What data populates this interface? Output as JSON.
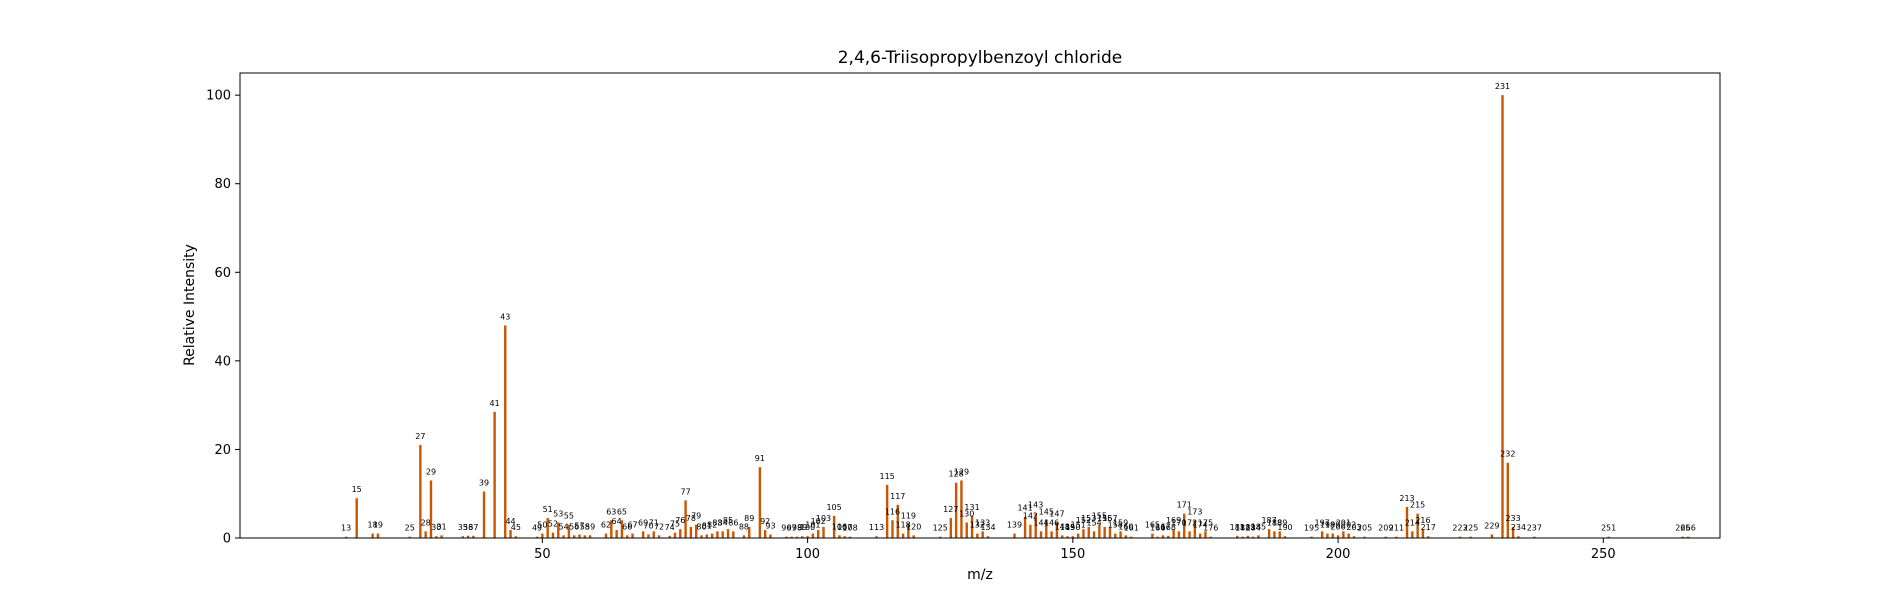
{
  "chart_data": {
    "type": "bar",
    "title": "2,4,6-Triisopropylbenzoyl chloride",
    "xlabel": "m/z",
    "ylabel": "Relative Intensity",
    "xlim": [
      -7,
      272
    ],
    "ylim": [
      0,
      105
    ],
    "x_ticks": [
      50,
      100,
      150,
      200,
      250
    ],
    "y_ticks": [
      0,
      20,
      40,
      60,
      80,
      100
    ],
    "grid": false,
    "bar_color": "#cc5500",
    "peaks": [
      {
        "mz": 13,
        "intensity": 0.3,
        "label": "13"
      },
      {
        "mz": 15,
        "intensity": 9.0,
        "label": "15"
      },
      {
        "mz": 18,
        "intensity": 1.0,
        "label": "18"
      },
      {
        "mz": 19,
        "intensity": 1.0,
        "label": "19"
      },
      {
        "mz": 25,
        "intensity": 0.3,
        "label": "25"
      },
      {
        "mz": 27,
        "intensity": 21.0,
        "label": "27"
      },
      {
        "mz": 28,
        "intensity": 1.5,
        "label": "28"
      },
      {
        "mz": 29,
        "intensity": 13.0,
        "label": "29"
      },
      {
        "mz": 30,
        "intensity": 0.4,
        "label": "30"
      },
      {
        "mz": 31,
        "intensity": 0.6,
        "label": "31"
      },
      {
        "mz": 35,
        "intensity": 0.4,
        "label": "35"
      },
      {
        "mz": 36,
        "intensity": 0.5,
        "label": "36"
      },
      {
        "mz": 37,
        "intensity": 0.5,
        "label": "37"
      },
      {
        "mz": 39,
        "intensity": 10.5,
        "label": "39"
      },
      {
        "mz": 41,
        "intensity": 28.5,
        "label": "41"
      },
      {
        "mz": 43,
        "intensity": 48.0,
        "label": "43"
      },
      {
        "mz": 44,
        "intensity": 1.8,
        "label": "44"
      },
      {
        "mz": 45,
        "intensity": 0.4,
        "label": "45"
      },
      {
        "mz": 49,
        "intensity": 0.3,
        "label": "49"
      },
      {
        "mz": 50,
        "intensity": 1.0,
        "label": "50"
      },
      {
        "mz": 51,
        "intensity": 4.5,
        "label": "51"
      },
      {
        "mz": 52,
        "intensity": 1.2,
        "label": "52"
      },
      {
        "mz": 53,
        "intensity": 3.5,
        "label": "53"
      },
      {
        "mz": 54,
        "intensity": 0.6,
        "label": "54"
      },
      {
        "mz": 55,
        "intensity": 3.0,
        "label": "55"
      },
      {
        "mz": 56,
        "intensity": 0.6,
        "label": "56"
      },
      {
        "mz": 57,
        "intensity": 0.8,
        "label": "57"
      },
      {
        "mz": 58,
        "intensity": 0.6,
        "label": "58"
      },
      {
        "mz": 59,
        "intensity": 0.6,
        "label": "59"
      },
      {
        "mz": 62,
        "intensity": 1.0,
        "label": "62"
      },
      {
        "mz": 63,
        "intensity": 4.0,
        "label": "63"
      },
      {
        "mz": 64,
        "intensity": 1.8,
        "label": "64"
      },
      {
        "mz": 65,
        "intensity": 4.0,
        "label": "65"
      },
      {
        "mz": 66,
        "intensity": 0.6,
        "label": "66"
      },
      {
        "mz": 67,
        "intensity": 1.0,
        "label": "67"
      },
      {
        "mz": 69,
        "intensity": 1.5,
        "label": "69"
      },
      {
        "mz": 70,
        "intensity": 0.8,
        "label": "70"
      },
      {
        "mz": 71,
        "intensity": 1.5,
        "label": "71"
      },
      {
        "mz": 72,
        "intensity": 0.6,
        "label": "72"
      },
      {
        "mz": 74,
        "intensity": 0.5,
        "label": "74"
      },
      {
        "mz": 75,
        "intensity": 1.2,
        "label": "75"
      },
      {
        "mz": 76,
        "intensity": 2.0,
        "label": "76"
      },
      {
        "mz": 77,
        "intensity": 8.5,
        "label": "77"
      },
      {
        "mz": 78,
        "intensity": 2.5,
        "label": "78"
      },
      {
        "mz": 79,
        "intensity": 3.0,
        "label": "79"
      },
      {
        "mz": 80,
        "intensity": 0.6,
        "label": "80"
      },
      {
        "mz": 81,
        "intensity": 0.8,
        "label": "81"
      },
      {
        "mz": 82,
        "intensity": 1.0,
        "label": "82"
      },
      {
        "mz": 83,
        "intensity": 1.5,
        "label": "83"
      },
      {
        "mz": 84,
        "intensity": 1.5,
        "label": "84"
      },
      {
        "mz": 85,
        "intensity": 2.0,
        "label": "85"
      },
      {
        "mz": 86,
        "intensity": 1.5,
        "label": "86"
      },
      {
        "mz": 88,
        "intensity": 0.6,
        "label": "88"
      },
      {
        "mz": 89,
        "intensity": 2.5,
        "label": "89"
      },
      {
        "mz": 91,
        "intensity": 16.0,
        "label": "91"
      },
      {
        "mz": 92,
        "intensity": 1.8,
        "label": "92"
      },
      {
        "mz": 93,
        "intensity": 0.8,
        "label": "93"
      },
      {
        "mz": 96,
        "intensity": 0.3,
        "label": "96"
      },
      {
        "mz": 97,
        "intensity": 0.3,
        "label": "97"
      },
      {
        "mz": 98,
        "intensity": 0.3,
        "label": "98"
      },
      {
        "mz": 99,
        "intensity": 0.4,
        "label": "99"
      },
      {
        "mz": 100,
        "intensity": 0.4,
        "label": "100"
      },
      {
        "mz": 101,
        "intensity": 1.0,
        "label": "101"
      },
      {
        "mz": 102,
        "intensity": 1.8,
        "label": "102"
      },
      {
        "mz": 103,
        "intensity": 2.5,
        "label": "103"
      },
      {
        "mz": 105,
        "intensity": 5.0,
        "label": "105"
      },
      {
        "mz": 106,
        "intensity": 0.6,
        "label": "106"
      },
      {
        "mz": 107,
        "intensity": 0.4,
        "label": "107"
      },
      {
        "mz": 108,
        "intensity": 0.3,
        "label": "108"
      },
      {
        "mz": 113,
        "intensity": 0.4,
        "label": "113"
      },
      {
        "mz": 115,
        "intensity": 12.0,
        "label": "115"
      },
      {
        "mz": 116,
        "intensity": 4.0,
        "label": "116"
      },
      {
        "mz": 117,
        "intensity": 7.5,
        "label": "117"
      },
      {
        "mz": 118,
        "intensity": 1.0,
        "label": "118"
      },
      {
        "mz": 119,
        "intensity": 3.0,
        "label": "119"
      },
      {
        "mz": 120,
        "intensity": 0.6,
        "label": "120"
      },
      {
        "mz": 125,
        "intensity": 0.3,
        "label": "125"
      },
      {
        "mz": 127,
        "intensity": 4.5,
        "label": "127"
      },
      {
        "mz": 128,
        "intensity": 12.5,
        "label": "128"
      },
      {
        "mz": 129,
        "intensity": 13.0,
        "label": "129"
      },
      {
        "mz": 130,
        "intensity": 3.5,
        "label": "130"
      },
      {
        "mz": 131,
        "intensity": 5.0,
        "label": "131"
      },
      {
        "mz": 132,
        "intensity": 1.0,
        "label": "132"
      },
      {
        "mz": 133,
        "intensity": 1.5,
        "label": "133"
      },
      {
        "mz": 134,
        "intensity": 0.4,
        "label": "134"
      },
      {
        "mz": 139,
        "intensity": 1.0,
        "label": "139"
      },
      {
        "mz": 141,
        "intensity": 4.8,
        "label": "141"
      },
      {
        "mz": 142,
        "intensity": 3.0,
        "label": "142"
      },
      {
        "mz": 143,
        "intensity": 5.5,
        "label": "143"
      },
      {
        "mz": 144,
        "intensity": 1.5,
        "label": "144"
      },
      {
        "mz": 145,
        "intensity": 4.0,
        "label": "145"
      },
      {
        "mz": 146,
        "intensity": 1.5,
        "label": "146"
      },
      {
        "mz": 147,
        "intensity": 3.5,
        "label": "147"
      },
      {
        "mz": 148,
        "intensity": 0.6,
        "label": "148"
      },
      {
        "mz": 149,
        "intensity": 0.4,
        "label": "149"
      },
      {
        "mz": 150,
        "intensity": 0.4,
        "label": "150"
      },
      {
        "mz": 151,
        "intensity": 1.0,
        "label": "151"
      },
      {
        "mz": 152,
        "intensity": 2.0,
        "label": "152"
      },
      {
        "mz": 153,
        "intensity": 2.5,
        "label": "153"
      },
      {
        "mz": 154,
        "intensity": 1.5,
        "label": "154"
      },
      {
        "mz": 155,
        "intensity": 3.0,
        "label": "155"
      },
      {
        "mz": 156,
        "intensity": 2.5,
        "label": "156"
      },
      {
        "mz": 157,
        "intensity": 2.5,
        "label": "157"
      },
      {
        "mz": 158,
        "intensity": 1.0,
        "label": "158"
      },
      {
        "mz": 159,
        "intensity": 1.5,
        "label": "159"
      },
      {
        "mz": 160,
        "intensity": 0.6,
        "label": "160"
      },
      {
        "mz": 161,
        "intensity": 0.3,
        "label": "161"
      },
      {
        "mz": 165,
        "intensity": 1.0,
        "label": "165"
      },
      {
        "mz": 166,
        "intensity": 0.3,
        "label": "166"
      },
      {
        "mz": 167,
        "intensity": 0.6,
        "label": "167"
      },
      {
        "mz": 168,
        "intensity": 0.5,
        "label": "168"
      },
      {
        "mz": 169,
        "intensity": 2.0,
        "label": "169"
      },
      {
        "mz": 170,
        "intensity": 1.5,
        "label": "170"
      },
      {
        "mz": 171,
        "intensity": 5.5,
        "label": "171"
      },
      {
        "mz": 172,
        "intensity": 1.5,
        "label": "172"
      },
      {
        "mz": 173,
        "intensity": 4.0,
        "label": "173"
      },
      {
        "mz": 174,
        "intensity": 1.0,
        "label": "174"
      },
      {
        "mz": 175,
        "intensity": 1.5,
        "label": "175"
      },
      {
        "mz": 176,
        "intensity": 0.3,
        "label": "176"
      },
      {
        "mz": 181,
        "intensity": 0.5,
        "label": "181"
      },
      {
        "mz": 182,
        "intensity": 0.3,
        "label": "182"
      },
      {
        "mz": 183,
        "intensity": 0.5,
        "label": "183"
      },
      {
        "mz": 184,
        "intensity": 0.3,
        "label": "184"
      },
      {
        "mz": 185,
        "intensity": 0.6,
        "label": "185"
      },
      {
        "mz": 187,
        "intensity": 2.0,
        "label": "187"
      },
      {
        "mz": 188,
        "intensity": 1.5,
        "label": "188"
      },
      {
        "mz": 189,
        "intensity": 1.5,
        "label": "189"
      },
      {
        "mz": 190,
        "intensity": 0.4,
        "label": "190"
      },
      {
        "mz": 195,
        "intensity": 0.3,
        "label": "195"
      },
      {
        "mz": 197,
        "intensity": 1.5,
        "label": "197"
      },
      {
        "mz": 198,
        "intensity": 1.0,
        "label": "198"
      },
      {
        "mz": 199,
        "intensity": 1.0,
        "label": "199"
      },
      {
        "mz": 200,
        "intensity": 0.6,
        "label": "200"
      },
      {
        "mz": 201,
        "intensity": 1.5,
        "label": "201"
      },
      {
        "mz": 202,
        "intensity": 1.0,
        "label": "202"
      },
      {
        "mz": 203,
        "intensity": 0.4,
        "label": "203"
      },
      {
        "mz": 205,
        "intensity": 0.3,
        "label": "205"
      },
      {
        "mz": 209,
        "intensity": 0.3,
        "label": "209"
      },
      {
        "mz": 211,
        "intensity": 0.3,
        "label": "211"
      },
      {
        "mz": 213,
        "intensity": 7.0,
        "label": "213"
      },
      {
        "mz": 214,
        "intensity": 1.5,
        "label": "214"
      },
      {
        "mz": 215,
        "intensity": 5.5,
        "label": "215"
      },
      {
        "mz": 216,
        "intensity": 2.0,
        "label": "216"
      },
      {
        "mz": 217,
        "intensity": 0.4,
        "label": "217"
      },
      {
        "mz": 223,
        "intensity": 0.3,
        "label": "223"
      },
      {
        "mz": 225,
        "intensity": 0.3,
        "label": "225"
      },
      {
        "mz": 229,
        "intensity": 0.8,
        "label": "229"
      },
      {
        "mz": 231,
        "intensity": 100.0,
        "label": "231"
      },
      {
        "mz": 232,
        "intensity": 17.0,
        "label": "232"
      },
      {
        "mz": 233,
        "intensity": 2.5,
        "label": "233"
      },
      {
        "mz": 234,
        "intensity": 0.4,
        "label": "234"
      },
      {
        "mz": 237,
        "intensity": 0.3,
        "label": "237"
      },
      {
        "mz": 251,
        "intensity": 0.3,
        "label": "251"
      },
      {
        "mz": 265,
        "intensity": 0.3,
        "label": "265"
      },
      {
        "mz": 266,
        "intensity": 0.3,
        "label": "266"
      }
    ]
  }
}
